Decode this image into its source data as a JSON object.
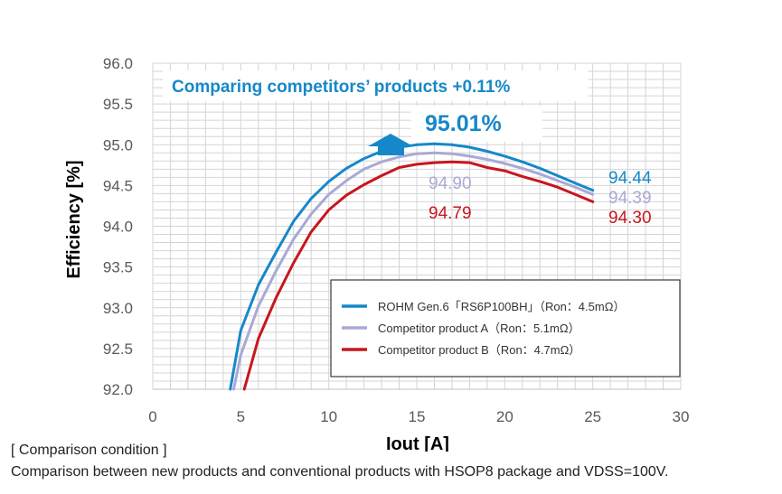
{
  "colors": {
    "rohm": "#1688c9",
    "compA": "#a9a9d6",
    "compB": "#c8161e",
    "grid": "#d4d4d4"
  },
  "chart_data": {
    "type": "line",
    "xlabel": "Iout [A]",
    "ylabel": "Efficiency [%]",
    "xlim": [
      0,
      30
    ],
    "ylim": [
      92.0,
      96.0
    ],
    "xticks": [
      "0",
      "5",
      "10",
      "15",
      "20",
      "25",
      "30"
    ],
    "yticks": [
      "92.0",
      "92.5",
      "93.0",
      "93.5",
      "94.0",
      "94.5",
      "95.0",
      "95.5",
      "96.0"
    ],
    "grid": true,
    "legend_position": "bottom-right",
    "series": [
      {
        "name": "ROHM Gen.6「RS6P100BH」（Ron：4.5mΩ）",
        "color_key": "rohm",
        "x": [
          4.4,
          5,
          6,
          7,
          8,
          9,
          10,
          11,
          12,
          13,
          14,
          15,
          16,
          17,
          18,
          19,
          20,
          21,
          22,
          23,
          24,
          25
        ],
        "y": [
          92.0,
          92.72,
          93.28,
          93.68,
          94.06,
          94.34,
          94.55,
          94.71,
          94.83,
          94.92,
          94.97,
          95.0,
          95.01,
          95.0,
          94.97,
          94.92,
          94.86,
          94.79,
          94.71,
          94.62,
          94.53,
          94.44
        ]
      },
      {
        "name": "Competitor product A（Ron：5.1mΩ）",
        "color_key": "compA",
        "x": [
          4.6,
          5,
          6,
          7,
          8,
          9,
          10,
          11,
          12,
          13,
          14,
          15,
          16,
          17,
          18,
          19,
          20,
          21,
          22,
          23,
          24,
          25
        ],
        "y": [
          92.0,
          92.42,
          93.02,
          93.45,
          93.84,
          94.15,
          94.39,
          94.56,
          94.7,
          94.79,
          94.85,
          94.89,
          94.9,
          94.89,
          94.86,
          94.82,
          94.77,
          94.71,
          94.64,
          94.56,
          94.48,
          94.39
        ]
      },
      {
        "name": "Competitor product B（Ron：4.7mΩ）",
        "color_key": "compB",
        "x": [
          5.2,
          6,
          7,
          8,
          9,
          10,
          11,
          12,
          13,
          14,
          15,
          16,
          17,
          18,
          19,
          20,
          21,
          22,
          23,
          24,
          25
        ],
        "y": [
          92.0,
          92.62,
          93.12,
          93.55,
          93.93,
          94.2,
          94.38,
          94.51,
          94.62,
          94.72,
          94.76,
          94.78,
          94.79,
          94.78,
          94.72,
          94.68,
          94.61,
          94.55,
          94.48,
          94.39,
          94.3
        ]
      }
    ],
    "end_labels": [
      {
        "text": "94.44",
        "color_key": "rohm"
      },
      {
        "text": "94.39",
        "color_key": "compA"
      },
      {
        "text": "94.30",
        "color_key": "compB"
      }
    ],
    "peak_labels": [
      {
        "text": "94.90",
        "color_key": "compA"
      },
      {
        "text": "94.79",
        "color_key": "compB"
      }
    ],
    "headline": "Comparing competitors’ products +0.11%",
    "peak_value": "95.01%"
  },
  "notes": {
    "condition_title": "[ Comparison condition ]",
    "condition_text": "Comparison between new products and conventional products with HSOP8 package and VDSS=100V."
  }
}
